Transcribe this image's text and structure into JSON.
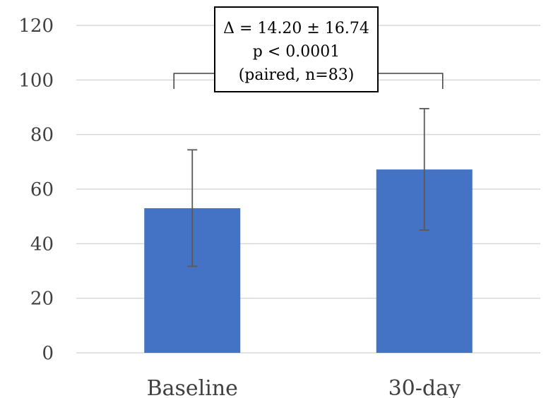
{
  "chart_data": {
    "type": "bar",
    "categories": [
      "Baseline",
      "30-day"
    ],
    "values": [
      53,
      67.2
    ],
    "error_low": [
      31.7,
      45.0
    ],
    "error_high": [
      74.4,
      89.5
    ],
    "ylim": [
      0,
      120
    ],
    "y_ticks": [
      0,
      20,
      40,
      60,
      80,
      100,
      120
    ],
    "grid": true,
    "bar_color": "#4472C4",
    "error_color": "#595959",
    "annotation": {
      "lines": [
        "Δ = 14.20 ± 16.74",
        "p < 0.0001",
        "(paired, n=83)"
      ]
    }
  }
}
